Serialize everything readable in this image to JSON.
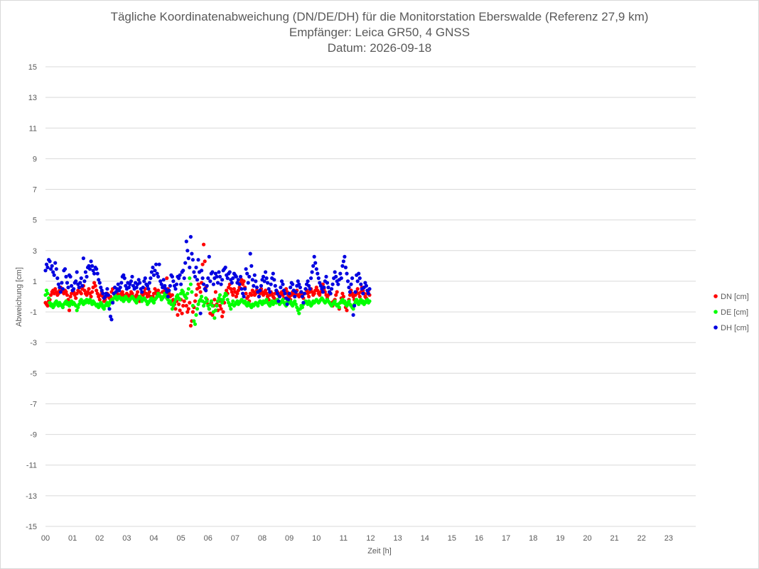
{
  "chart_data": {
    "type": "scatter",
    "title": "Tägliche Koordinatenabweichung (DN/DE/DH) für die Monitorstation Eberswalde (Referenz 27,9 km)",
    "subtitle": "Empfänger: Leica GR50, 4 GNSS",
    "date_line": "Datum: 2026-09-18",
    "xlabel": "Zeit [h]",
    "ylabel": "Abweichung [cm]",
    "xlim": [
      0,
      24
    ],
    "ylim": [
      -15,
      15
    ],
    "x_tick_labels": [
      "00",
      "01",
      "02",
      "03",
      "04",
      "05",
      "06",
      "07",
      "08",
      "09",
      "10",
      "11",
      "12",
      "13",
      "14",
      "15",
      "16",
      "17",
      "18",
      "19",
      "20",
      "21",
      "22",
      "23"
    ],
    "y_tick_labels": [
      "15",
      "13",
      "11",
      "9",
      "7",
      "5",
      "3",
      "1",
      "-1",
      "-3",
      "-5",
      "-7",
      "-9",
      "-11",
      "-13",
      "-15"
    ],
    "grid": "horizontal",
    "legend_position": "right",
    "sample_interval_h": 0.04,
    "series": [
      {
        "name": "DN [cm]",
        "color": "#ff0000",
        "y": [
          -0.4,
          -0.5,
          -0.6,
          -0.3,
          -0.2,
          0.1,
          0.3,
          0.4,
          0.2,
          0.5,
          0.3,
          0.1,
          0.2,
          0.4,
          0.6,
          0.5,
          0.3,
          0.2,
          0.4,
          0.3,
          0.1,
          -0.2,
          -0.9,
          0.0,
          0.2,
          0.4,
          0.3,
          0.1,
          -0.1,
          0.2,
          0.4,
          0.6,
          0.3,
          0.2,
          0.5,
          0.7,
          0.4,
          0.2,
          0.1,
          0.3,
          0.5,
          0.2,
          0.0,
          0.3,
          0.6,
          0.9,
          0.7,
          0.4,
          0.2,
          0.0,
          -0.2,
          0.1,
          0.3,
          0.0,
          -0.3,
          -0.2,
          0.0,
          0.2,
          0.1,
          -0.1,
          0.0,
          0.3,
          0.5,
          0.2,
          0.1,
          -0.1,
          0.2,
          0.4,
          0.1,
          0.0,
          0.2,
          0.3,
          0.1,
          -0.1,
          0.0,
          0.2,
          0.0,
          -0.2,
          0.1,
          0.3,
          0.2,
          0.0,
          -0.2,
          -0.1,
          0.1,
          0.3,
          0.0,
          -0.3,
          -0.1,
          0.2,
          0.1,
          0.3,
          0.5,
          0.2,
          0.0,
          0.1,
          0.3,
          0.0,
          -0.2,
          0.0,
          0.2,
          0.5,
          0.3,
          0.1,
          0.4,
          0.2,
          0.0,
          -0.1,
          0.3,
          0.6,
          0.4,
          0.1,
          1.2,
          0.5,
          0.2,
          0.0,
          -0.3,
          0.1,
          -0.2,
          -0.5,
          -0.8,
          -0.3,
          -1.2,
          -0.5,
          -0.9,
          -0.2,
          -1.1,
          -0.6,
          -0.3,
          0.0,
          -0.6,
          -1.0,
          -0.8,
          -0.4,
          -1.9,
          -1.6,
          -1.0,
          -0.7,
          -0.3,
          0.1,
          0.5,
          0.8,
          0.6,
          0.3,
          0.9,
          2.1,
          3.4,
          2.3,
          0.6,
          -0.2,
          -0.5,
          -0.8,
          -1.1,
          -0.4,
          -1.2,
          -0.6,
          -0.2,
          0.3,
          -0.5,
          -0.9,
          -0.3,
          -0.6,
          -0.8,
          -1.3,
          -1.0,
          -0.4,
          0.1,
          0.4,
          0.2,
          0.6,
          0.8,
          0.5,
          0.3,
          0.1,
          0.5,
          0.3,
          0.0,
          0.2,
          0.4,
          0.6,
          0.9,
          1.1,
          0.8,
          1.0,
          0.6,
          0.2,
          -0.1,
          0.0,
          -0.3,
          0.2,
          0.1,
          0.4,
          0.3,
          0.1,
          0.2,
          0.4,
          0.3,
          0.0,
          0.2,
          0.5,
          0.3,
          0.1,
          0.2,
          0.4,
          0.2,
          0.0,
          -0.2,
          0.1,
          0.3,
          0.2,
          0.0,
          -0.1,
          0.2,
          0.4,
          0.3,
          0.1,
          0.0,
          0.2,
          0.3,
          0.1,
          -0.1,
          0.2,
          0.5,
          0.3,
          0.1,
          0.0,
          -0.2,
          0.1,
          0.3,
          0.2,
          0.0,
          0.2,
          0.4,
          0.1,
          0.0,
          0.2,
          0.3,
          0.1,
          -0.1,
          0.2,
          0.5,
          0.4,
          0.2,
          0.0,
          0.3,
          0.5,
          0.3,
          0.1,
          0.2,
          0.4,
          0.6,
          0.4,
          0.2,
          0.1,
          0.3,
          0.5,
          0.8,
          0.5,
          0.3,
          0.1,
          -0.1,
          0.1,
          0.3,
          0.2,
          -0.4,
          -0.6,
          -0.3,
          -0.2,
          0.1,
          0.3,
          -0.5,
          -0.8,
          -0.4,
          -0.1,
          0.2,
          0.0,
          -0.4,
          -0.7,
          -0.9,
          -0.5,
          -0.2,
          0.1,
          0.4,
          0.2,
          0.0,
          -0.2,
          0.1,
          0.3,
          0.5,
          0.2,
          0.0,
          0.3,
          0.6,
          0.4,
          0.2,
          0.0,
          -0.1,
          0.2,
          0.4,
          0.1
        ]
      },
      {
        "name": "DE [cm]",
        "color": "#00ff00",
        "y": [
          0.1,
          0.4,
          0.2,
          -0.1,
          -0.4,
          -0.6,
          -0.5,
          -0.7,
          -0.6,
          -0.4,
          -0.3,
          -0.5,
          -0.6,
          -0.4,
          -0.5,
          -0.6,
          -0.7,
          -0.5,
          -0.4,
          -0.3,
          -0.5,
          -0.4,
          -0.6,
          -0.4,
          -0.3,
          -0.5,
          -0.4,
          -0.5,
          -0.6,
          -0.9,
          -0.7,
          -0.5,
          -0.3,
          -0.2,
          -0.4,
          -0.5,
          -0.3,
          -0.4,
          -0.2,
          -0.3,
          -0.4,
          -0.2,
          -0.3,
          -0.5,
          -0.3,
          -0.4,
          -0.5,
          -0.6,
          -0.5,
          -0.7,
          -0.6,
          -0.4,
          -0.5,
          -0.7,
          -0.8,
          -0.6,
          -0.5,
          -0.4,
          -0.6,
          -0.5,
          -0.3,
          -0.2,
          -0.3,
          -0.1,
          0.1,
          0.0,
          -0.2,
          -0.1,
          0.0,
          -0.1,
          -0.2,
          -0.1,
          -0.3,
          -0.2,
          0.0,
          -0.1,
          -0.2,
          -0.3,
          -0.2,
          -0.1,
          0.0,
          -0.1,
          -0.2,
          -0.3,
          -0.4,
          -0.2,
          -0.1,
          0.0,
          -0.1,
          -0.3,
          -0.2,
          -0.1,
          -0.2,
          -0.3,
          -0.5,
          -0.4,
          -0.3,
          -0.2,
          -0.1,
          -0.3,
          -0.4,
          -0.2,
          -0.1,
          0.0,
          0.2,
          0.1,
          0.0,
          -0.2,
          -0.1,
          0.0,
          0.2,
          0.1,
          -0.1,
          -0.2,
          -0.4,
          -0.3,
          -0.5,
          -0.8,
          -0.6,
          -0.4,
          -0.2,
          0.0,
          0.1,
          -0.1,
          -0.2,
          0.2,
          0.4,
          0.3,
          0.1,
          0.0,
          -0.1,
          0.2,
          0.5,
          1.2,
          0.8,
          0.3,
          -0.6,
          -1.6,
          -1.8,
          -1.2,
          -0.8,
          -0.5,
          -0.3,
          -0.2,
          0.0,
          -0.3,
          -0.6,
          -0.4,
          -0.1,
          -0.3,
          -0.6,
          -0.8,
          -0.5,
          -0.3,
          -0.6,
          -1.0,
          -1.4,
          -0.9,
          -0.6,
          -0.3,
          -0.1,
          0.1,
          -0.2,
          -0.4,
          -0.2,
          0.0,
          0.2,
          0.1,
          -0.2,
          -0.4,
          -0.6,
          -0.8,
          -0.5,
          -0.3,
          -0.6,
          -0.5,
          -0.4,
          -0.3,
          -0.5,
          -0.4,
          -0.3,
          -0.2,
          -0.3,
          -0.4,
          -0.3,
          -0.5,
          -0.6,
          -0.4,
          -0.5,
          -0.6,
          -0.7,
          -0.5,
          -0.6,
          -0.5,
          -0.4,
          -0.5,
          -0.6,
          -0.4,
          -0.3,
          -0.4,
          -0.5,
          -0.3,
          -0.4,
          -0.3,
          -0.2,
          -0.4,
          -0.5,
          -0.6,
          -0.4,
          -0.3,
          -0.5,
          -0.4,
          -0.3,
          -0.4,
          -0.2,
          -0.3,
          -0.5,
          -0.4,
          -0.3,
          -0.2,
          -0.4,
          -0.5,
          -0.6,
          -0.3,
          -0.2,
          -0.4,
          -0.3,
          -0.5,
          -0.6,
          -0.4,
          -0.3,
          -0.5,
          -0.7,
          -0.9,
          -1.1,
          -0.8,
          -0.6,
          -0.7,
          -0.5,
          -0.4,
          -0.3,
          -0.4,
          -0.5,
          -0.3,
          -0.4,
          -0.6,
          -0.5,
          -0.3,
          -0.4,
          -0.3,
          -0.2,
          -0.3,
          -0.4,
          -0.3,
          -0.2,
          -0.1,
          -0.2,
          -0.3,
          -0.4,
          -0.3,
          -0.2,
          -0.3,
          -0.4,
          -0.5,
          -0.6,
          -0.5,
          -0.4,
          -0.3,
          -0.5,
          -0.6,
          -0.5,
          -0.7,
          -0.4,
          -0.3,
          -0.2,
          -0.4,
          -0.3,
          -0.5,
          -0.6,
          -0.4,
          -0.3,
          -0.5,
          -0.6,
          -0.7,
          -0.8,
          -0.5,
          -0.3,
          -0.2,
          -0.4,
          -0.5,
          -0.3,
          -0.2,
          -0.4,
          -0.3,
          -0.5,
          -0.4,
          -0.3,
          -0.2,
          -0.4,
          -0.3
        ]
      },
      {
        "name": "DH [cm]",
        "color": "#0000e0",
        "y": [
          1.7,
          2.1,
          1.9,
          2.4,
          2.3,
          1.8,
          2.0,
          1.6,
          1.4,
          2.2,
          1.8,
          1.2,
          0.8,
          0.6,
          0.3,
          0.9,
          0.5,
          1.7,
          1.8,
          1.3,
          0.9,
          0.6,
          1.4,
          1.3,
          0.7,
          0.4,
          0.5,
          0.9,
          1.0,
          1.6,
          0.8,
          0.6,
          0.9,
          1.2,
          0.7,
          2.5,
          1.0,
          1.6,
          1.3,
          1.9,
          2.0,
          1.8,
          2.3,
          2.0,
          1.7,
          1.5,
          1.9,
          1.8,
          1.5,
          1.1,
          0.9,
          0.6,
          0.4,
          0.2,
          -0.1,
          0.0,
          0.2,
          0.5,
          0.1,
          -0.8,
          -1.3,
          -1.5,
          -0.4,
          0.2,
          0.6,
          0.3,
          0.5,
          0.8,
          0.4,
          0.6,
          0.9,
          1.3,
          1.4,
          1.2,
          0.7,
          0.5,
          0.9,
          0.6,
          0.8,
          1.0,
          1.3,
          0.7,
          0.5,
          0.9,
          0.6,
          0.8,
          1.1,
          0.9,
          0.5,
          0.3,
          0.6,
          1.0,
          1.2,
          0.8,
          0.7,
          0.5,
          0.9,
          1.2,
          1.6,
          1.9,
          1.4,
          1.7,
          2.1,
          1.5,
          1.3,
          2.1,
          1.0,
          0.8,
          0.6,
          1.1,
          0.7,
          0.5,
          0.3,
          0.0,
          0.4,
          0.7,
          1.4,
          1.3,
          1.0,
          0.7,
          0.5,
          0.8,
          1.3,
          1.2,
          1.4,
          0.8,
          1.6,
          1.7,
          1.2,
          2.2,
          3.6,
          3.0,
          2.5,
          1.9,
          3.9,
          2.8,
          2.4,
          1.6,
          1.3,
          1.9,
          1.1,
          2.4,
          1.6,
          -1.1,
          1.7,
          1.2,
          0.8,
          0.5,
          0.4,
          0.7,
          1.2,
          2.6,
          1.0,
          1.5,
          1.6,
          0.8,
          1.2,
          1.5,
          1.3,
          0.9,
          1.6,
          1.3,
          0.8,
          1.1,
          1.7,
          1.8,
          1.9,
          1.4,
          1.2,
          1.5,
          1.6,
          1.1,
          0.9,
          1.2,
          1.5,
          1.4,
          1.3,
          0.9,
          1.1,
          0.8,
          1.3,
          0.5,
          0.2,
          0.0,
          0.5,
          1.8,
          1.5,
          0.9,
          1.3,
          2.8,
          2.0,
          1.1,
          0.7,
          1.4,
          1.0,
          0.6,
          0.3,
          0.0,
          0.4,
          0.7,
          1.1,
          1.3,
          1.0,
          1.6,
          1.2,
          0.9,
          0.5,
          0.3,
          0.8,
          1.2,
          1.5,
          1.1,
          0.7,
          0.4,
          0.2,
          -0.3,
          0.0,
          0.6,
          1.0,
          0.8,
          0.4,
          0.2,
          -0.1,
          -0.5,
          -0.2,
          0.2,
          0.6,
          0.9,
          0.8,
          0.4,
          0.0,
          0.3,
          0.7,
          1.0,
          0.8,
          0.6,
          0.3,
          0.0,
          -0.4,
          0.2,
          0.5,
          0.8,
          1.0,
          0.7,
          0.5,
          1.2,
          1.6,
          2.0,
          2.6,
          2.2,
          1.8,
          1.5,
          1.2,
          0.9,
          0.7,
          0.5,
          0.3,
          0.6,
          1.0,
          1.3,
          0.9,
          0.6,
          0.3,
          0.2,
          0.5,
          0.8,
          1.2,
          1.6,
          1.3,
          1.0,
          0.8,
          1.1,
          1.5,
          1.2,
          2.0,
          2.3,
          2.6,
          1.9,
          1.5,
          1.0,
          0.6,
          0.3,
          0.8,
          1.2,
          -1.2,
          -0.6,
          0.3,
          1.4,
          1.0,
          1.5,
          1.2,
          0.8,
          0.5,
          0.2,
          0.6,
          0.9,
          0.7,
          0.4,
          0.2,
          0.5
        ]
      }
    ]
  }
}
